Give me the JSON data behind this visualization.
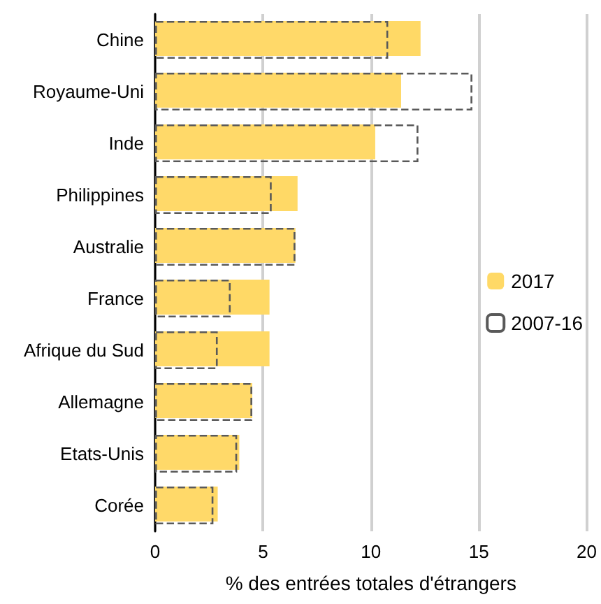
{
  "chart_data": {
    "type": "bar",
    "orientation": "horizontal",
    "xlabel": "% des entrées totales d'étrangers",
    "categories": [
      "Chine",
      "Royaume-Uni",
      "Inde",
      "Philippines",
      "Australie",
      "France",
      "Afrique du Sud",
      "Allemagne",
      "Etats-Unis",
      "Corée"
    ],
    "series": [
      {
        "name": "2017",
        "color": "#ffd966",
        "values": [
          12.3,
          11.4,
          10.2,
          6.6,
          6.5,
          5.3,
          5.3,
          4.5,
          3.9,
          2.9
        ]
      },
      {
        "name": "2007-16",
        "color": "#595959",
        "line_style": "dashed",
        "values": [
          10.8,
          14.7,
          12.2,
          5.4,
          6.5,
          3.5,
          2.9,
          4.5,
          3.8,
          2.7
        ]
      }
    ],
    "xlim": [
      0,
      20
    ],
    "xticks": [
      0,
      5,
      10,
      15,
      20
    ],
    "grid": "x",
    "legend": "right"
  }
}
